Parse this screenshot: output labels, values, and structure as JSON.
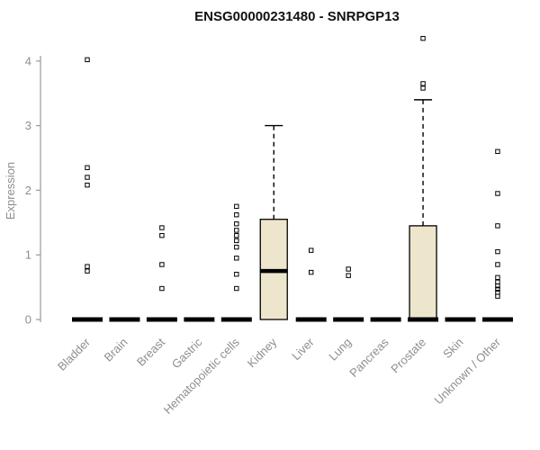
{
  "chart_data": {
    "type": "boxplot",
    "title": "ENSG00000231480 - SNRPGP13",
    "ylabel": "Expression",
    "ylim": [
      0,
      4.5
    ],
    "yticks": [
      0,
      1,
      2,
      3,
      4
    ],
    "grid": false,
    "legend": "none",
    "box_fill": "#ede6cd",
    "box_stroke": "#000000",
    "axis_color": "#999999",
    "label_color": "#8e8e8e",
    "categories": [
      "Bladder",
      "Brain",
      "Breast",
      "Gastric",
      "Hematopoietic cells",
      "Kidney",
      "Liver",
      "Lung",
      "Pancreas",
      "Prostate",
      "Skin",
      "Unknown / Other"
    ],
    "series": [
      {
        "label": "Bladder",
        "q1": 0,
        "median": 0,
        "q3": 0,
        "whisker_low": 0,
        "whisker_high": 0,
        "outliers": [
          4.02,
          2.35,
          2.2,
          2.08,
          0.82,
          0.75
        ]
      },
      {
        "label": "Brain",
        "q1": 0,
        "median": 0,
        "q3": 0,
        "whisker_low": 0,
        "whisker_high": 0,
        "outliers": []
      },
      {
        "label": "Breast",
        "q1": 0,
        "median": 0,
        "q3": 0,
        "whisker_low": 0,
        "whisker_high": 0,
        "outliers": [
          1.42,
          1.3,
          0.85,
          0.48
        ]
      },
      {
        "label": "Gastric",
        "q1": 0,
        "median": 0,
        "q3": 0,
        "whisker_low": 0,
        "whisker_high": 0,
        "outliers": []
      },
      {
        "label": "Hematopoietic cells",
        "q1": 0,
        "median": 0,
        "q3": 0,
        "whisker_low": 0,
        "whisker_high": 0,
        "outliers": [
          1.75,
          1.62,
          1.48,
          1.38,
          1.3,
          1.22,
          1.12,
          0.95,
          0.7,
          0.48
        ]
      },
      {
        "label": "Kidney",
        "q1": 0,
        "median": 0.75,
        "q3": 1.55,
        "whisker_low": 0,
        "whisker_high": 3.0,
        "outliers": []
      },
      {
        "label": "Liver",
        "q1": 0,
        "median": 0,
        "q3": 0,
        "whisker_low": 0,
        "whisker_high": 0,
        "outliers": [
          1.07,
          0.73
        ]
      },
      {
        "label": "Lung",
        "q1": 0,
        "median": 0,
        "q3": 0,
        "whisker_low": 0,
        "whisker_high": 0,
        "outliers": [
          0.78,
          0.68
        ]
      },
      {
        "label": "Pancreas",
        "q1": 0,
        "median": 0,
        "q3": 0,
        "whisker_low": 0,
        "whisker_high": 0,
        "outliers": []
      },
      {
        "label": "Prostate",
        "q1": 0,
        "median": 0,
        "q3": 1.45,
        "whisker_low": 0,
        "whisker_high": 3.4,
        "outliers": [
          4.35,
          3.65,
          3.58
        ]
      },
      {
        "label": "Skin",
        "q1": 0,
        "median": 0,
        "q3": 0,
        "whisker_low": 0,
        "whisker_high": 0,
        "outliers": []
      },
      {
        "label": "Unknown / Other",
        "q1": 0,
        "median": 0,
        "q3": 0,
        "whisker_low": 0,
        "whisker_high": 0,
        "outliers": [
          2.6,
          1.95,
          1.45,
          1.05,
          0.85,
          0.65,
          0.58,
          0.52,
          0.47,
          0.42,
          0.36
        ]
      }
    ]
  }
}
